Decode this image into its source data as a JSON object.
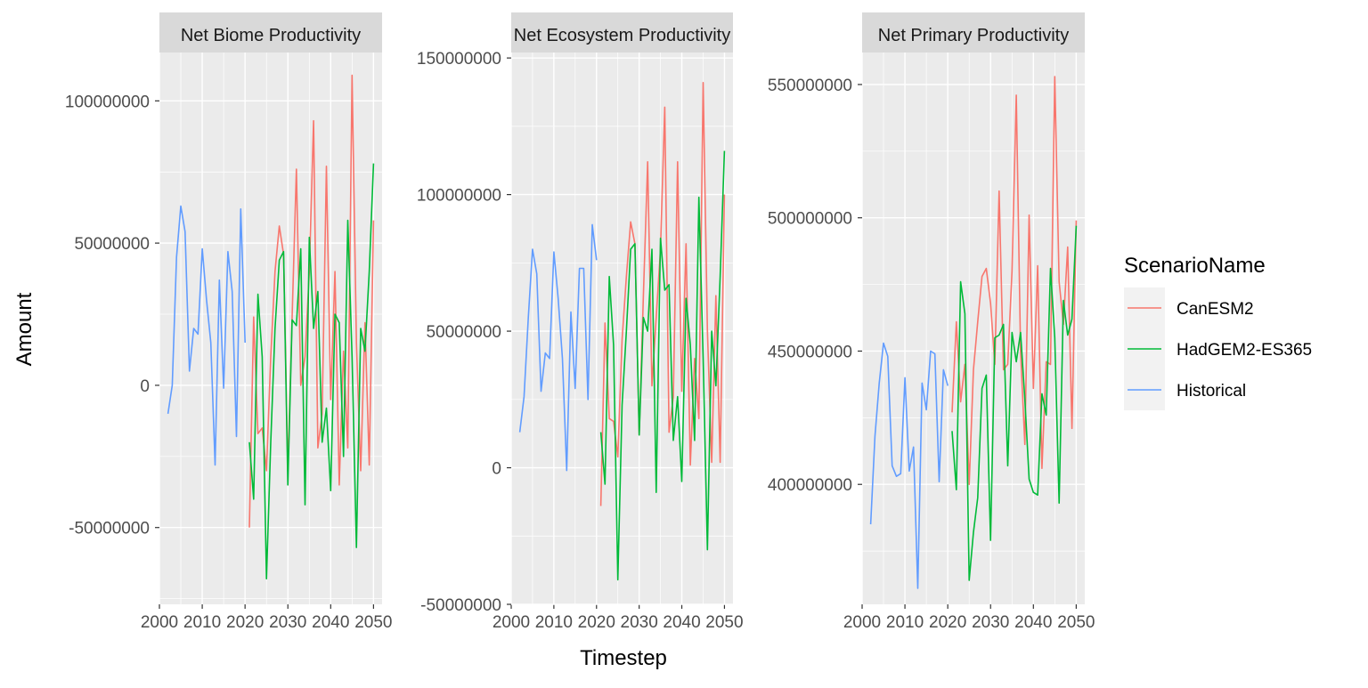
{
  "chart_data": {
    "type": "line",
    "xlabel": "Timestep",
    "ylabel": "Amount",
    "legend": {
      "title": "ScenarioName",
      "position": "right",
      "entries": [
        {
          "name": "CanESM2",
          "color": "#F8766D"
        },
        {
          "name": "HadGEM2-ES365",
          "color": "#00BA38"
        },
        {
          "name": "Historical",
          "color": "#619CFF"
        }
      ]
    },
    "colors": {
      "CanESM2": "#F8766D",
      "HadGEM2-ES365": "#00BA38",
      "Historical": "#619CFF",
      "panel": "#EBEBEB",
      "strip": "#D9D9D9",
      "grid": "#FFFFFF"
    },
    "grid": true,
    "facets": [
      {
        "title": "Net Biome Productivity",
        "xlim": [
          2000,
          2052
        ],
        "ylim": [
          -77000000,
          117000000
        ],
        "x_ticks": [
          2000,
          2010,
          2020,
          2030,
          2040,
          2050
        ],
        "y_ticks": [
          -50000000,
          0,
          50000000,
          100000000
        ],
        "y_tick_labels": [
          "-50000000",
          "0",
          "50000000",
          "100000000"
        ],
        "series": [
          {
            "name": "Historical",
            "x": [
              2002,
              2003,
              2004,
              2005,
              2006,
              2007,
              2008,
              2009,
              2010,
              2011,
              2012,
              2013,
              2014,
              2015,
              2016,
              2017,
              2018,
              2019,
              2020
            ],
            "y": [
              -10000000,
              0,
              45000000,
              63000000,
              54000000,
              5000000,
              20000000,
              18000000,
              48000000,
              30000000,
              15000000,
              -28000000,
              37000000,
              -1000000,
              47000000,
              33000000,
              -18000000,
              62000000,
              15000000
            ]
          },
          {
            "name": "CanESM2",
            "x": [
              2021,
              2022,
              2023,
              2024,
              2025,
              2026,
              2027,
              2028,
              2029,
              2030,
              2031,
              2032,
              2033,
              2034,
              2035,
              2036,
              2037,
              2038,
              2039,
              2040,
              2041,
              2042,
              2043,
              2044,
              2045,
              2046,
              2047,
              2048,
              2049,
              2050
            ],
            "y": [
              -50000000,
              24000000,
              -17000000,
              -15000000,
              -30000000,
              10000000,
              40000000,
              56000000,
              46000000,
              -30000000,
              24000000,
              76000000,
              0,
              10000000,
              40000000,
              93000000,
              -22000000,
              -10000000,
              77000000,
              -5000000,
              40000000,
              -35000000,
              12000000,
              -22000000,
              109000000,
              15000000,
              -30000000,
              22000000,
              -28000000,
              58000000
            ]
          },
          {
            "name": "HadGEM2-ES365",
            "x": [
              2021,
              2022,
              2023,
              2024,
              2025,
              2026,
              2027,
              2028,
              2029,
              2030,
              2031,
              2032,
              2033,
              2034,
              2035,
              2036,
              2037,
              2038,
              2039,
              2040,
              2041,
              2042,
              2043,
              2044,
              2045,
              2046,
              2047,
              2048,
              2049,
              2050
            ],
            "y": [
              -20000000,
              -40000000,
              32000000,
              10000000,
              -68000000,
              -20000000,
              20000000,
              44000000,
              47000000,
              -35000000,
              23000000,
              21000000,
              48000000,
              -42000000,
              52000000,
              20000000,
              33000000,
              -20000000,
              -8000000,
              -37000000,
              25000000,
              22000000,
              -25000000,
              58000000,
              10000000,
              -57000000,
              20000000,
              12000000,
              40000000,
              78000000
            ]
          }
        ]
      },
      {
        "title": "Net Ecosystem Productivity",
        "xlim": [
          2000,
          2052
        ],
        "ylim": [
          -50000000,
          152000000
        ],
        "x_ticks": [
          2000,
          2010,
          2020,
          2030,
          2040,
          2050
        ],
        "y_ticks": [
          -50000000,
          0,
          50000000,
          100000000,
          150000000
        ],
        "y_tick_labels": [
          "-50000000",
          "0",
          "50000000",
          "100000000",
          "150000000"
        ],
        "series": [
          {
            "name": "Historical",
            "x": [
              2002,
              2003,
              2004,
              2005,
              2006,
              2007,
              2008,
              2009,
              2010,
              2011,
              2012,
              2013,
              2014,
              2015,
              2016,
              2017,
              2018,
              2019,
              2020
            ],
            "y": [
              13000000,
              26000000,
              55000000,
              80000000,
              71000000,
              28000000,
              42000000,
              40000000,
              79000000,
              62000000,
              40000000,
              -1000000,
              57000000,
              29000000,
              73000000,
              73000000,
              25000000,
              89000000,
              76000000
            ]
          },
          {
            "name": "CanESM2",
            "x": [
              2021,
              2022,
              2023,
              2024,
              2025,
              2026,
              2027,
              2028,
              2029,
              2030,
              2031,
              2032,
              2033,
              2034,
              2035,
              2036,
              2037,
              2038,
              2039,
              2040,
              2041,
              2042,
              2043,
              2044,
              2045,
              2046,
              2047,
              2048,
              2049,
              2050
            ],
            "y": [
              -14000000,
              53000000,
              18000000,
              17000000,
              4000000,
              47000000,
              70000000,
              90000000,
              82000000,
              12000000,
              63000000,
              112000000,
              30000000,
              55000000,
              80000000,
              132000000,
              13000000,
              26000000,
              112000000,
              28000000,
              82000000,
              1000000,
              40000000,
              18000000,
              141000000,
              50000000,
              2000000,
              63000000,
              2000000,
              100000000
            ]
          },
          {
            "name": "HadGEM2-ES365",
            "x": [
              2021,
              2022,
              2023,
              2024,
              2025,
              2026,
              2027,
              2028,
              2029,
              2030,
              2031,
              2032,
              2033,
              2034,
              2035,
              2036,
              2037,
              2038,
              2039,
              2040,
              2041,
              2042,
              2043,
              2044,
              2045,
              2046,
              2047,
              2048,
              2049,
              2050
            ],
            "y": [
              13000000,
              -6000000,
              70000000,
              45000000,
              -41000000,
              23000000,
              50000000,
              80000000,
              82000000,
              12000000,
              55000000,
              50000000,
              80000000,
              -9000000,
              84000000,
              65000000,
              67000000,
              10000000,
              26000000,
              -5000000,
              62000000,
              45000000,
              10000000,
              99000000,
              40000000,
              -30000000,
              50000000,
              30000000,
              70000000,
              116000000
            ]
          }
        ]
      },
      {
        "title": "Net Primary Productivity",
        "xlim": [
          2000,
          2052
        ],
        "ylim": [
          355000000,
          562000000
        ],
        "x_ticks": [
          2000,
          2010,
          2020,
          2030,
          2040,
          2050
        ],
        "y_ticks": [
          400000000,
          450000000,
          500000000,
          550000000
        ],
        "y_tick_labels": [
          "400000000",
          "450000000",
          "500000000",
          "550000000"
        ],
        "series": [
          {
            "name": "Historical",
            "x": [
              2002,
              2003,
              2004,
              2005,
              2006,
              2007,
              2008,
              2009,
              2010,
              2011,
              2012,
              2013,
              2014,
              2015,
              2016,
              2017,
              2018,
              2019,
              2020
            ],
            "y": [
              385000000,
              418000000,
              438000000,
              453000000,
              448000000,
              407000000,
              403000000,
              404000000,
              440000000,
              405000000,
              414000000,
              361000000,
              438000000,
              428000000,
              450000000,
              449000000,
              401000000,
              443000000,
              437000000
            ]
          },
          {
            "name": "CanESM2",
            "x": [
              2021,
              2022,
              2023,
              2024,
              2025,
              2026,
              2027,
              2028,
              2029,
              2030,
              2031,
              2032,
              2033,
              2034,
              2035,
              2036,
              2037,
              2038,
              2039,
              2040,
              2041,
              2042,
              2043,
              2044,
              2045,
              2046,
              2047,
              2048,
              2049,
              2050
            ],
            "y": [
              427000000,
              461000000,
              431000000,
              445000000,
              400000000,
              443000000,
              461000000,
              478000000,
              481000000,
              468000000,
              445000000,
              510000000,
              443000000,
              445000000,
              480000000,
              546000000,
              450000000,
              415000000,
              501000000,
              436000000,
              482000000,
              406000000,
              446000000,
              445000000,
              553000000,
              476000000,
              460000000,
              489000000,
              421000000,
              499000000
            ]
          },
          {
            "name": "HadGEM2-ES365",
            "x": [
              2021,
              2022,
              2023,
              2024,
              2025,
              2026,
              2027,
              2028,
              2029,
              2030,
              2031,
              2032,
              2033,
              2034,
              2035,
              2036,
              2037,
              2038,
              2039,
              2040,
              2041,
              2042,
              2043,
              2044,
              2045,
              2046,
              2047,
              2048,
              2049,
              2050
            ],
            "y": [
              420000000,
              398000000,
              476000000,
              464000000,
              364000000,
              382000000,
              395000000,
              436000000,
              441000000,
              379000000,
              455000000,
              456000000,
              460000000,
              407000000,
              457000000,
              446000000,
              457000000,
              432000000,
              402000000,
              397000000,
              396000000,
              434000000,
              426000000,
              481000000,
              455000000,
              393000000,
              469000000,
              456000000,
              462000000,
              497000000
            ]
          }
        ]
      }
    ]
  }
}
